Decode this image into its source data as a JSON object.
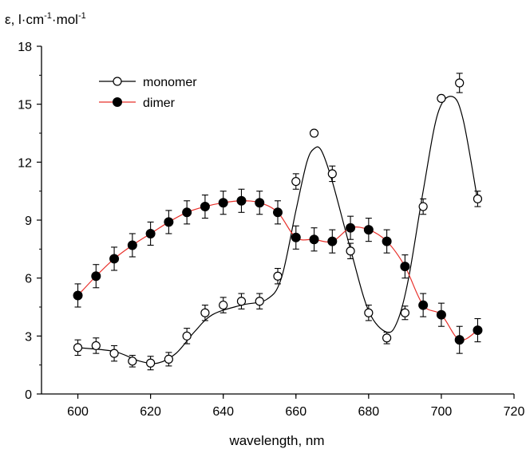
{
  "chart_data": {
    "type": "scatter",
    "ylabel_parts": [
      "ε, l·cm",
      "-1",
      "·mol",
      "-1"
    ],
    "xlabel": "wavelength, nm",
    "xlim": [
      590,
      720
    ],
    "ylim": [
      0,
      18
    ],
    "x_ticks": [
      600,
      620,
      640,
      660,
      680,
      700,
      720
    ],
    "x_tick_labels": [
      "600",
      "620",
      "640",
      "660",
      "680",
      "700",
      "720"
    ],
    "y_ticks": [
      0,
      3,
      6,
      9,
      12,
      15,
      18
    ],
    "y_tick_labels": [
      "0",
      "3",
      "6",
      "9",
      "12",
      "15",
      "18"
    ],
    "grid": false,
    "legend_position": "top-left",
    "series": [
      {
        "name": "monomer",
        "marker": "open-circle",
        "line_color": "#000000",
        "x": [
          600,
          605,
          610,
          615,
          620,
          625,
          630,
          635,
          640,
          645,
          650,
          655,
          660,
          665,
          670,
          675,
          680,
          685,
          690,
          695,
          700,
          705,
          710
        ],
        "y": [
          2.4,
          2.5,
          2.1,
          1.7,
          1.6,
          1.8,
          3.0,
          4.2,
          4.6,
          4.8,
          4.8,
          6.1,
          11.0,
          13.5,
          11.4,
          7.4,
          4.2,
          2.9,
          4.2,
          9.7,
          15.3,
          16.1,
          10.1
        ],
        "err": [
          0.4,
          0.4,
          0.4,
          0.3,
          0.35,
          0.35,
          0.4,
          0.4,
          0.4,
          0.4,
          0.4,
          0.4,
          0.4,
          0.0,
          0.4,
          0.4,
          0.4,
          0.3,
          0.35,
          0.4,
          0.0,
          0.5,
          0.4
        ],
        "fit_x": [
          600,
          610,
          617,
          622,
          627,
          632,
          637,
          645,
          652,
          656,
          660,
          663,
          665,
          667,
          670,
          675,
          680,
          685,
          688,
          691,
          695,
          699,
          703,
          706,
          710
        ],
        "fit_y": [
          2.4,
          2.2,
          1.7,
          1.6,
          2.1,
          3.2,
          4.1,
          4.6,
          4.9,
          6.0,
          9.5,
          12.0,
          12.7,
          12.6,
          11.0,
          7.5,
          4.3,
          3.2,
          3.8,
          6.0,
          10.5,
          14.5,
          15.4,
          14.2,
          10.0
        ]
      },
      {
        "name": "dimer",
        "marker": "filled-circle",
        "line_color": "#e8302a",
        "x": [
          600,
          605,
          610,
          615,
          620,
          625,
          630,
          635,
          640,
          645,
          650,
          655,
          660,
          665,
          670,
          675,
          680,
          685,
          690,
          695,
          700,
          705,
          710
        ],
        "y": [
          5.1,
          6.1,
          7.0,
          7.7,
          8.3,
          8.9,
          9.4,
          9.7,
          9.9,
          10.0,
          9.9,
          9.4,
          8.1,
          8.0,
          7.9,
          8.6,
          8.5,
          7.9,
          6.6,
          4.6,
          4.1,
          2.8,
          3.3
        ],
        "err": [
          0.6,
          0.6,
          0.6,
          0.6,
          0.6,
          0.6,
          0.6,
          0.6,
          0.6,
          0.6,
          0.6,
          0.6,
          0.6,
          0.6,
          0.6,
          0.6,
          0.6,
          0.6,
          0.6,
          0.6,
          0.6,
          0.7,
          0.6
        ],
        "fit_x": [
          600,
          605,
          610,
          615,
          620,
          625,
          630,
          635,
          640,
          645,
          650,
          655,
          660,
          665,
          670,
          675,
          680,
          685,
          690,
          695,
          700,
          705,
          710
        ],
        "fit_y": [
          5.1,
          6.1,
          7.0,
          7.7,
          8.3,
          8.9,
          9.4,
          9.7,
          9.9,
          10.0,
          9.9,
          9.4,
          8.1,
          8.0,
          7.9,
          8.6,
          8.5,
          7.9,
          6.6,
          4.6,
          4.1,
          2.8,
          3.3
        ]
      }
    ]
  }
}
